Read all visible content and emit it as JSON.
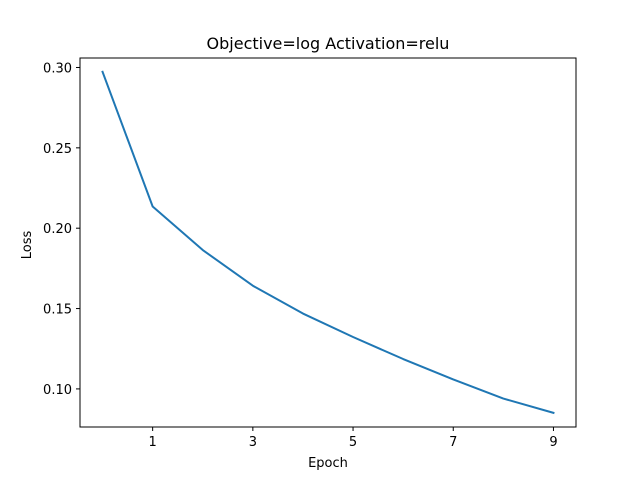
{
  "chart_data": {
    "type": "line",
    "title": "Objective=log Activation=relu",
    "xlabel": "Epoch",
    "ylabel": "Loss",
    "xlim": [
      -0.45,
      9.45
    ],
    "ylim": [
      0.0763,
      0.3059
    ],
    "x_ticks": [
      1,
      3,
      5,
      7,
      9
    ],
    "y_ticks": [
      0.1,
      0.15,
      0.2,
      0.25,
      0.3
    ],
    "y_tick_labels": [
      "0.10",
      "0.15",
      "0.20",
      "0.25",
      "0.30"
    ],
    "grid": false,
    "series": [
      {
        "color": "#1f77b4",
        "x": [
          0,
          1,
          2,
          3,
          4,
          5,
          6,
          7,
          8,
          9
        ],
        "values": [
          0.2973,
          0.2135,
          0.1864,
          0.1642,
          0.1469,
          0.1323,
          0.1186,
          0.1059,
          0.094,
          0.0851
        ]
      }
    ]
  }
}
